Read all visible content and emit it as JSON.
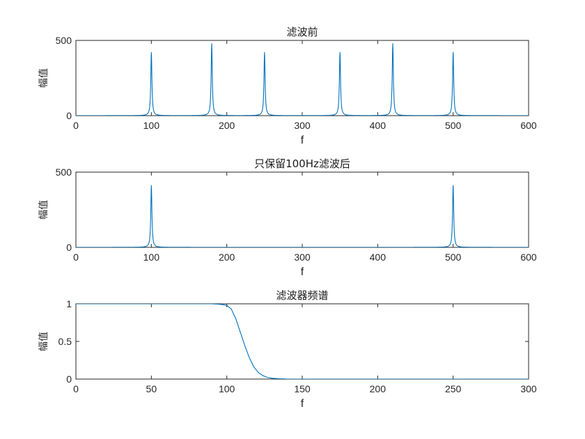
{
  "chart_data": [
    {
      "type": "line",
      "title": "滤波前",
      "xlabel": "f",
      "ylabel": "幅值",
      "xlim": [
        0,
        600
      ],
      "ylim": [
        0,
        500
      ],
      "xticks": [
        "0",
        "100",
        "200",
        "300",
        "400",
        "500",
        "600"
      ],
      "yticks": [
        "0",
        "500"
      ],
      "line_color": "#0072BD",
      "peaks": [
        {
          "x": 100,
          "y": 420
        },
        {
          "x": 180,
          "y": 478
        },
        {
          "x": 250,
          "y": 420
        },
        {
          "x": 350,
          "y": 420
        },
        {
          "x": 420,
          "y": 478
        },
        {
          "x": 500,
          "y": 420
        }
      ]
    },
    {
      "type": "line",
      "title": "只保留100Hz滤波后",
      "xlabel": "f",
      "ylabel": "幅值",
      "xlim": [
        0,
        600
      ],
      "ylim": [
        0,
        500
      ],
      "xticks": [
        "0",
        "100",
        "200",
        "300",
        "400",
        "500",
        "600"
      ],
      "yticks": [
        "0",
        "500"
      ],
      "line_color": "#0072BD",
      "peaks": [
        {
          "x": 100,
          "y": 410
        },
        {
          "x": 500,
          "y": 410
        }
      ]
    },
    {
      "type": "line",
      "title": "滤波器频谱",
      "xlabel": "f",
      "ylabel": "幅值",
      "xlim": [
        0,
        300
      ],
      "ylim": [
        0,
        1
      ],
      "xticks": [
        "0",
        "50",
        "100",
        "150",
        "200",
        "250",
        "300"
      ],
      "yticks": [
        "0",
        "0.5",
        "1"
      ],
      "line_color": "#0072BD",
      "curve": {
        "x": [
          0,
          90,
          95,
          100,
          103,
          106,
          109,
          112,
          115,
          118,
          121,
          124,
          127,
          130,
          135,
          140,
          150,
          300
        ],
        "y": [
          1,
          1,
          0.995,
          0.98,
          0.93,
          0.8,
          0.62,
          0.44,
          0.28,
          0.16,
          0.085,
          0.045,
          0.022,
          0.011,
          0.004,
          0.001,
          0,
          0
        ]
      }
    }
  ]
}
